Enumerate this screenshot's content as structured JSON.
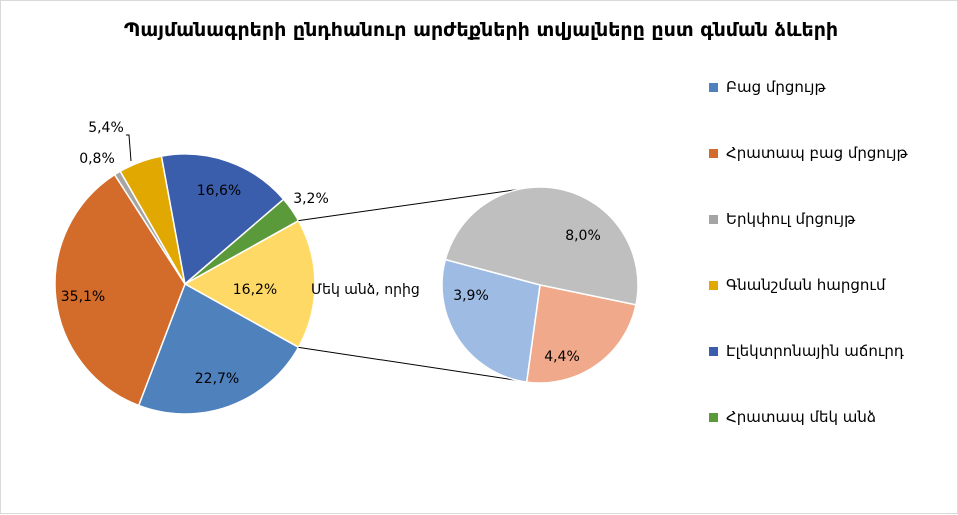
{
  "chart_data": {
    "type": "pie",
    "title": "Պայմանագրերի ընդհանուր արժեքների տվյալները ըստ գնման ձևերի",
    "slices": [
      {
        "name": "Բաց մրցույթ",
        "value": 22.7,
        "label": "22,7%",
        "color": "#4f81bd"
      },
      {
        "name": "Հրատապ բաց մրցույթ",
        "value": 35.1,
        "label": "35,1%",
        "color": "#d36b2a"
      },
      {
        "name": "Երկփուլ մրցույթ",
        "value": 0.8,
        "label": "0,8%",
        "color": "#a5a5a5"
      },
      {
        "name": "Գնանշման հարցում",
        "value": 5.4,
        "label": "5,4%",
        "color": "#e0a800"
      },
      {
        "name": "Էլեկտրոնային աճուրդ",
        "value": 16.6,
        "label": "16,6%",
        "color": "#3a5eac"
      },
      {
        "name": "Հրատապ մեկ անձ",
        "value": 3.2,
        "label": "3,2%",
        "color": "#5b9a3a"
      }
    ],
    "other": {
      "name": "Մեկ անձ, որից",
      "value": 16.2,
      "label": "16,2%",
      "color": "#ffd966"
    },
    "secondary_pie": [
      {
        "value": 8.0,
        "label": "8,0%",
        "color": "#bfbfbf"
      },
      {
        "value": 3.9,
        "label": "3,9%",
        "color": "#f0a98a"
      },
      {
        "value": 4.4,
        "label": "4,4%",
        "color": "#9dbbe3"
      }
    ],
    "legend_position": "right"
  }
}
